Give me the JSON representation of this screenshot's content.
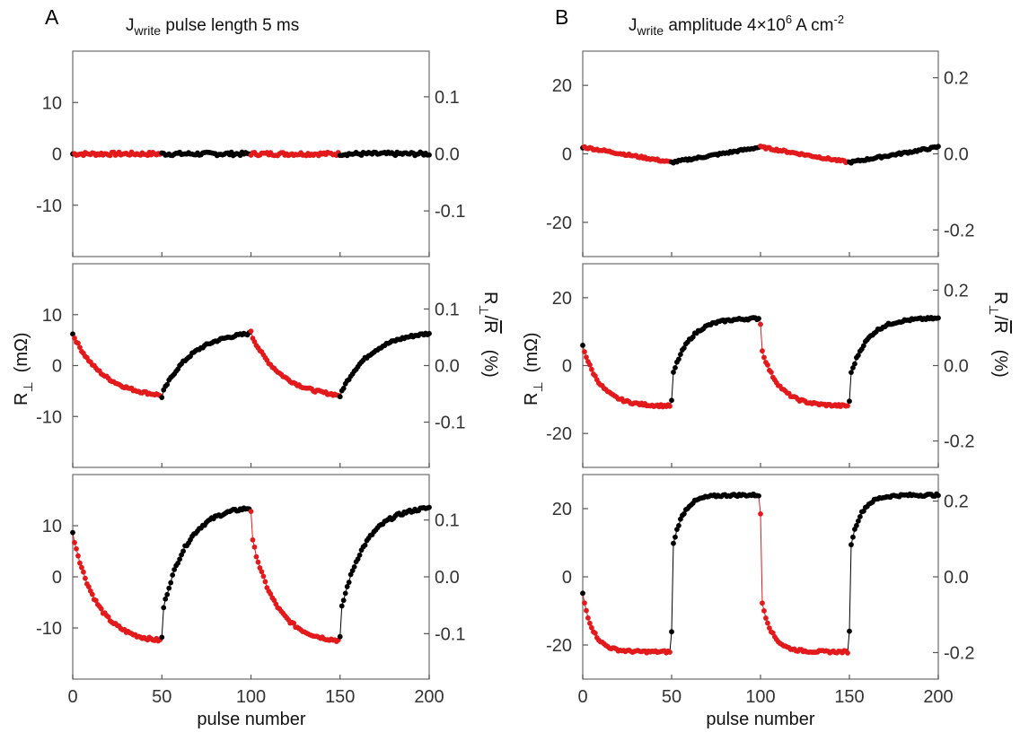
{
  "columns": [
    {
      "letter": "A",
      "title": {
        "symbol": "J",
        "sub": "write",
        "rest": " pulse length 5 ms",
        "sup": "",
        "tail": ""
      }
    },
    {
      "letter": "B",
      "title": {
        "symbol": "J",
        "sub": "write",
        "rest": " amplitude 4×10",
        "sup": "6",
        "tail": " A cm",
        "sup2": "-2"
      }
    }
  ],
  "left_axis_label": {
    "main": "R",
    "sub": "⊥",
    "unit": "(mΩ)"
  },
  "right_axis_label": {
    "main": "R",
    "sub": "⊥",
    "slash": "/",
    "bar": "R",
    "unit": "(%)"
  },
  "x_axis_label": "pulse number",
  "colors": {
    "red": "#e31a1c",
    "black": "#000000",
    "frame": "#777777"
  },
  "chart_data": [
    {
      "type": "scatter",
      "column": "A",
      "row": 1,
      "xlim": [
        0,
        200
      ],
      "ylim": [
        -20,
        20
      ],
      "y2lim": [
        -0.18,
        0.18
      ],
      "yticks": [
        "-10",
        "0",
        "10"
      ],
      "yticks_values": [
        -10,
        0,
        10
      ],
      "y2ticks": [
        "-0.1",
        "0.0",
        "0.1"
      ],
      "y2ticks_values": [
        -0.1,
        0.0,
        0.1
      ],
      "xticks": [],
      "shape": "flat",
      "start": 0.0,
      "end": 0.0,
      "noise": 0.35
    },
    {
      "type": "scatter",
      "column": "A",
      "row": 2,
      "xlim": [
        0,
        200
      ],
      "ylim": [
        -20,
        20
      ],
      "y2lim": [
        -0.18,
        0.18
      ],
      "yticks": [
        "-10",
        "0",
        "10"
      ],
      "yticks_values": [
        -10,
        0,
        10
      ],
      "y2ticks": [
        "-0.1",
        "0.0",
        "0.1"
      ],
      "y2ticks_values": [
        -0.1,
        0.0,
        0.1
      ],
      "xticks": [],
      "shape": "relax",
      "high": 7,
      "low": -6.5,
      "jump": 0.8,
      "noise": 0.25,
      "tau": 18
    },
    {
      "type": "scatter",
      "column": "A",
      "row": 3,
      "xlim": [
        0,
        200
      ],
      "ylim": [
        -20,
        20
      ],
      "y2lim": [
        -0.18,
        0.18
      ],
      "yticks": [
        "-10",
        "0",
        "10"
      ],
      "yticks_values": [
        -10,
        0,
        10
      ],
      "y2ticks": [
        "-0.1",
        "0.0",
        "0.1"
      ],
      "y2ticks_values": [
        -0.1,
        0.0,
        0.1
      ],
      "xticks": [
        "0",
        "50",
        "100",
        "150",
        "200"
      ],
      "xticks_values": [
        0,
        50,
        100,
        150,
        200
      ],
      "shape": "relax",
      "high": 14,
      "low": -13,
      "jump": 5.5,
      "noise": 0.3,
      "tau": 14
    },
    {
      "type": "scatter",
      "column": "B",
      "row": 1,
      "xlim": [
        0,
        200
      ],
      "ylim": [
        -30,
        30
      ],
      "y2lim": [
        -0.27,
        0.27
      ],
      "yticks": [
        "-20",
        "0",
        "20"
      ],
      "yticks_values": [
        -20,
        0,
        20
      ],
      "y2ticks": [
        "-0.2",
        "0.0",
        "0.2"
      ],
      "y2ticks_values": [
        -0.2,
        0.0,
        0.2
      ],
      "xticks": [],
      "shape": "linear",
      "high": 2,
      "low": -2.5,
      "noise": 0.3
    },
    {
      "type": "scatter",
      "column": "B",
      "row": 2,
      "xlim": [
        0,
        200
      ],
      "ylim": [
        -30,
        30
      ],
      "y2lim": [
        -0.27,
        0.27
      ],
      "yticks": [
        "-20",
        "0",
        "20"
      ],
      "yticks_values": [
        -20,
        0,
        20
      ],
      "y2ticks": [
        "-0.2",
        "0.0",
        "0.2"
      ],
      "y2ticks_values": [
        -0.2,
        0.0,
        0.2
      ],
      "xticks": [],
      "shape": "relax",
      "high": 14,
      "low": -12,
      "jump": 8,
      "noise": 0.35,
      "tau": 10
    },
    {
      "type": "scatter",
      "column": "B",
      "row": 3,
      "xlim": [
        0,
        200
      ],
      "ylim": [
        -30,
        30
      ],
      "y2lim": [
        -0.27,
        0.27
      ],
      "yticks": [
        "-20",
        "0",
        "20"
      ],
      "yticks_values": [
        -20,
        0,
        20
      ],
      "y2ticks": [
        "-0.2",
        "0.0",
        "0.2"
      ],
      "y2ticks_values": [
        -0.2,
        0.0,
        0.2
      ],
      "xticks": [
        "0",
        "50",
        "100",
        "150",
        "200"
      ],
      "xticks_values": [
        0,
        50,
        100,
        150,
        200
      ],
      "shape": "relax",
      "high": 24,
      "low": -22,
      "jump": 29,
      "noise": 0.35,
      "tau": 6
    }
  ]
}
